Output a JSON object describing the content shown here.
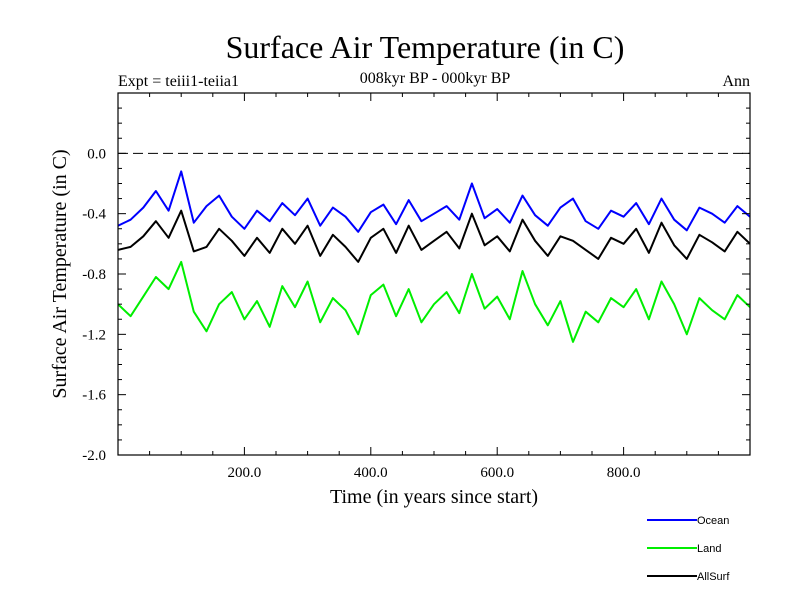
{
  "chart_data": {
    "type": "line",
    "title": "Surface Air Temperature (in C)",
    "subtitle": "008kyr BP - 000kyr BP",
    "annotation_left": "Expt = teiii1-teiia1",
    "annotation_right": "Ann",
    "xlabel": "Time (in years since start)",
    "ylabel": "Surface Air Temperature (in C)",
    "xlim": [
      0,
      1000
    ],
    "ylim": [
      -2.0,
      0.4
    ],
    "x_ticks": [
      200,
      400,
      600,
      800
    ],
    "x_tick_labels": [
      "200.0",
      "400.0",
      "600.0",
      "800.0"
    ],
    "y_ticks": [
      0.0,
      -0.4,
      -0.8,
      -1.2,
      -1.6,
      -2.0
    ],
    "y_tick_labels": [
      "0.0",
      "-0.4",
      "-0.8",
      "-1.2",
      "-1.6",
      "-2.0"
    ],
    "reference_line": 0.0,
    "legend_position": "bottom-right",
    "series": [
      {
        "name": "Ocean",
        "color": "#0000ff",
        "x": [
          0,
          20,
          40,
          60,
          80,
          100,
          120,
          140,
          160,
          180,
          200,
          220,
          240,
          260,
          280,
          300,
          320,
          340,
          360,
          380,
          400,
          420,
          440,
          460,
          480,
          500,
          520,
          540,
          560,
          580,
          600,
          620,
          640,
          660,
          680,
          700,
          720,
          740,
          760,
          780,
          800,
          820,
          840,
          860,
          880,
          900,
          920,
          940,
          960,
          980,
          1000
        ],
        "values": [
          -0.48,
          -0.44,
          -0.36,
          -0.25,
          -0.38,
          -0.12,
          -0.46,
          -0.35,
          -0.28,
          -0.42,
          -0.5,
          -0.38,
          -0.45,
          -0.33,
          -0.41,
          -0.3,
          -0.48,
          -0.36,
          -0.42,
          -0.52,
          -0.39,
          -0.34,
          -0.47,
          -0.31,
          -0.45,
          -0.4,
          -0.35,
          -0.44,
          -0.2,
          -0.43,
          -0.37,
          -0.46,
          -0.28,
          -0.41,
          -0.48,
          -0.36,
          -0.3,
          -0.45,
          -0.5,
          -0.38,
          -0.42,
          -0.33,
          -0.47,
          -0.3,
          -0.44,
          -0.51,
          -0.36,
          -0.4,
          -0.46,
          -0.35,
          -0.42
        ]
      },
      {
        "name": "Land",
        "color": "#00ee00",
        "x": [
          0,
          20,
          40,
          60,
          80,
          100,
          120,
          140,
          160,
          180,
          200,
          220,
          240,
          260,
          280,
          300,
          320,
          340,
          360,
          380,
          400,
          420,
          440,
          460,
          480,
          500,
          520,
          540,
          560,
          580,
          600,
          620,
          640,
          660,
          680,
          700,
          720,
          740,
          760,
          780,
          800,
          820,
          840,
          860,
          880,
          900,
          920,
          940,
          960,
          980,
          1000
        ],
        "values": [
          -1.0,
          -1.08,
          -0.95,
          -0.82,
          -0.9,
          -0.72,
          -1.05,
          -1.18,
          -1.0,
          -0.92,
          -1.1,
          -0.98,
          -1.15,
          -0.88,
          -1.02,
          -0.85,
          -1.12,
          -0.96,
          -1.04,
          -1.2,
          -0.94,
          -0.87,
          -1.08,
          -0.9,
          -1.12,
          -1.0,
          -0.92,
          -1.06,
          -0.8,
          -1.03,
          -0.95,
          -1.1,
          -0.78,
          -1.0,
          -1.14,
          -0.98,
          -1.25,
          -1.05,
          -1.12,
          -0.96,
          -1.02,
          -0.9,
          -1.1,
          -0.85,
          -1.0,
          -1.2,
          -0.96,
          -1.04,
          -1.1,
          -0.94,
          -1.02
        ]
      },
      {
        "name": "AllSurf",
        "color": "#000000",
        "x": [
          0,
          20,
          40,
          60,
          80,
          100,
          120,
          140,
          160,
          180,
          200,
          220,
          240,
          260,
          280,
          300,
          320,
          340,
          360,
          380,
          400,
          420,
          440,
          460,
          480,
          500,
          520,
          540,
          560,
          580,
          600,
          620,
          640,
          660,
          680,
          700,
          720,
          740,
          760,
          780,
          800,
          820,
          840,
          860,
          880,
          900,
          920,
          940,
          960,
          980,
          1000
        ],
        "values": [
          -0.64,
          -0.62,
          -0.55,
          -0.45,
          -0.56,
          -0.38,
          -0.65,
          -0.62,
          -0.5,
          -0.58,
          -0.68,
          -0.56,
          -0.66,
          -0.5,
          -0.6,
          -0.48,
          -0.68,
          -0.54,
          -0.62,
          -0.72,
          -0.56,
          -0.5,
          -0.66,
          -0.48,
          -0.64,
          -0.58,
          -0.52,
          -0.63,
          -0.4,
          -0.61,
          -0.55,
          -0.65,
          -0.44,
          -0.58,
          -0.68,
          -0.55,
          -0.58,
          -0.64,
          -0.7,
          -0.56,
          -0.6,
          -0.5,
          -0.66,
          -0.46,
          -0.61,
          -0.7,
          -0.54,
          -0.59,
          -0.65,
          -0.52,
          -0.6
        ]
      }
    ]
  }
}
